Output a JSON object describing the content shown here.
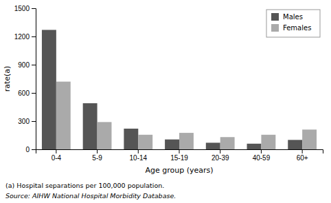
{
  "chart_data": {
    "type": "bar",
    "categories": [
      "0-4",
      "5-9",
      "10-14",
      "15-19",
      "20-39",
      "40-59",
      "60+"
    ],
    "series": [
      {
        "name": "Males",
        "color": "#555555",
        "values": [
          1270,
          490,
          220,
          105,
          70,
          60,
          100
        ]
      },
      {
        "name": "Females",
        "color": "#aaaaaa",
        "values": [
          720,
          290,
          155,
          175,
          130,
          155,
          210
        ]
      }
    ],
    "xlabel": "Age group (years)",
    "ylabel": "rate(a)",
    "ylim": [
      0,
      1500
    ],
    "yticks": [
      0,
      300,
      600,
      900,
      1200,
      1500
    ],
    "grid": false,
    "legend": "upper right",
    "annotations": [
      "(a) Hospital separations per 100,000 population.",
      "Source: AIHW National Hospital Morbidity Database."
    ]
  }
}
